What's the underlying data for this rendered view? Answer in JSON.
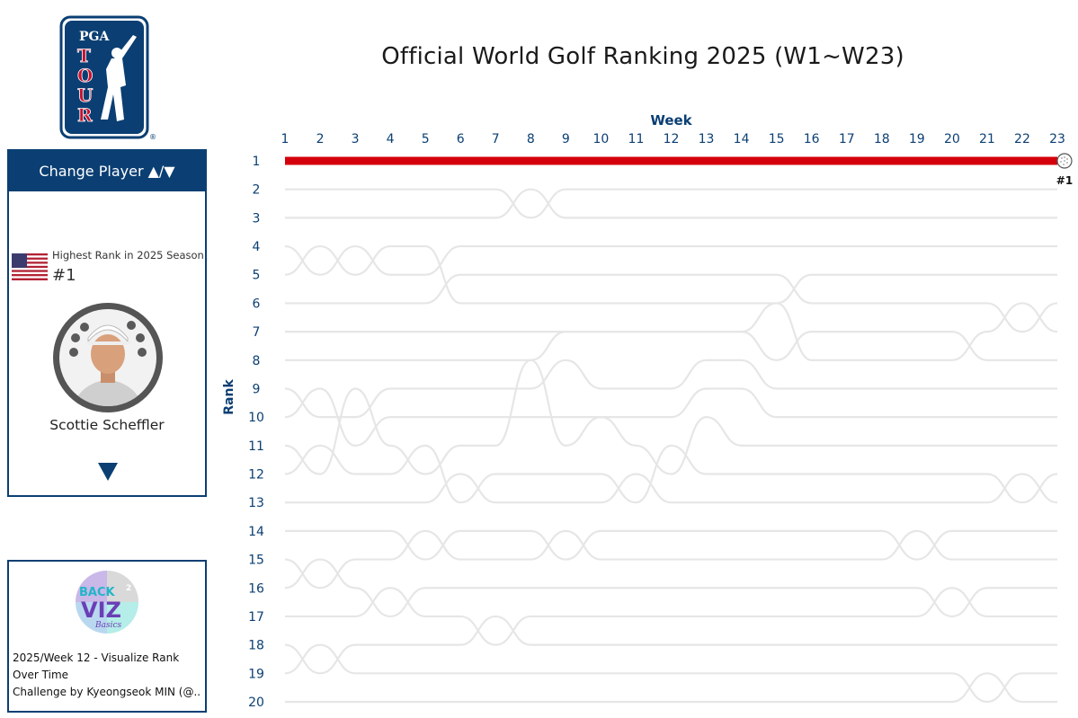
{
  "title": "Official World Golf Ranking 2025 (W1~W23)",
  "panel": {
    "change_player_label": "Change Player ▲/▼",
    "highest_rank_label": "Highest Rank in 2025 Season",
    "highest_rank_value": "#1",
    "player_name": "Scottie Scheffler",
    "flag_icon": "us-flag-icon",
    "next_icon": "triangle-down-icon"
  },
  "logo": {
    "text": "PGA TOUR"
  },
  "credit": {
    "logo_text": "BACK 2 VIZ Basics",
    "line1": "2025/Week 12 - Visualize Rank",
    "line2": "Over Time",
    "line3": "Challenge by Kyeongseok MIN (@.."
  },
  "colors": {
    "navy": "#0b3f73",
    "highlight": "#d4000c",
    "background_lines": "#e6e6e6"
  },
  "chart_data": {
    "type": "line",
    "xlabel": "Week",
    "ylabel": "Rank",
    "x": [
      1,
      2,
      3,
      4,
      5,
      6,
      7,
      8,
      9,
      10,
      11,
      12,
      13,
      14,
      15,
      16,
      17,
      18,
      19,
      20,
      21,
      22,
      23
    ],
    "xlim": [
      1,
      23
    ],
    "ylim": [
      1,
      20
    ],
    "y_reversed": true,
    "yticks": [
      1,
      2,
      3,
      4,
      5,
      6,
      7,
      8,
      9,
      10,
      11,
      12,
      13,
      14,
      15,
      16,
      17,
      18,
      19,
      20
    ],
    "highlight": {
      "name": "Scottie Scheffler",
      "values": [
        1,
        1,
        1,
        1,
        1,
        1,
        1,
        1,
        1,
        1,
        1,
        1,
        1,
        1,
        1,
        1,
        1,
        1,
        1,
        1,
        1,
        1,
        1
      ],
      "end_label": "#1"
    },
    "background_series": [
      {
        "values": [
          2,
          2,
          2,
          2,
          2,
          2,
          2,
          3,
          2,
          2,
          2,
          2,
          2,
          2,
          2,
          2,
          2,
          2,
          2,
          2,
          2,
          2,
          2
        ]
      },
      {
        "values": [
          3,
          3,
          3,
          3,
          3,
          3,
          3,
          2,
          3,
          3,
          3,
          3,
          3,
          3,
          3,
          3,
          3,
          3,
          3,
          3,
          3,
          3,
          3
        ]
      },
      {
        "values": [
          4,
          5,
          4,
          5,
          5,
          4,
          4,
          4,
          4,
          4,
          4,
          4,
          4,
          4,
          4,
          4,
          4,
          4,
          4,
          4,
          4,
          4,
          4
        ]
      },
      {
        "values": [
          5,
          4,
          5,
          4,
          4,
          6,
          6,
          6,
          6,
          6,
          6,
          6,
          6,
          6,
          6,
          5,
          5,
          5,
          5,
          5,
          5,
          5,
          5
        ]
      },
      {
        "values": [
          6,
          6,
          6,
          6,
          6,
          5,
          5,
          5,
          5,
          5,
          5,
          5,
          5,
          5,
          5,
          6,
          6,
          6,
          6,
          6,
          6,
          7,
          6
        ]
      },
      {
        "values": [
          7,
          7,
          7,
          7,
          7,
          7,
          7,
          7,
          7,
          7,
          7,
          7,
          7,
          7,
          6,
          8,
          8,
          8,
          8,
          8,
          7,
          6,
          7
        ]
      },
      {
        "values": [
          8,
          8,
          8,
          8,
          8,
          8,
          8,
          8,
          7,
          7,
          7,
          7,
          7,
          7,
          8,
          7,
          7,
          7,
          7,
          7,
          8,
          8,
          8
        ]
      },
      {
        "values": [
          9,
          10,
          10,
          9,
          9,
          9,
          9,
          9,
          8,
          9,
          9,
          9,
          8,
          8,
          9,
          9,
          9,
          9,
          9,
          9,
          9,
          9,
          9
        ]
      },
      {
        "values": [
          10,
          9,
          11,
          10,
          10,
          10,
          10,
          10,
          10,
          10,
          10,
          10,
          9,
          9,
          10,
          10,
          10,
          10,
          10,
          10,
          10,
          10,
          10
        ]
      },
      {
        "values": [
          11,
          12,
          9,
          11,
          12,
          11,
          11,
          8,
          11,
          10,
          11,
          12,
          10,
          11,
          11,
          11,
          11,
          11,
          11,
          11,
          11,
          11,
          11
        ]
      },
      {
        "values": [
          12,
          11,
          12,
          12,
          11,
          13,
          12,
          12,
          12,
          12,
          13,
          11,
          12,
          12,
          12,
          12,
          12,
          12,
          12,
          12,
          12,
          13,
          12
        ]
      },
      {
        "values": [
          13,
          13,
          13,
          13,
          13,
          12,
          13,
          13,
          13,
          13,
          12,
          13,
          13,
          13,
          13,
          13,
          13,
          13,
          13,
          13,
          13,
          12,
          13
        ]
      },
      {
        "values": [
          14,
          14,
          14,
          14,
          15,
          14,
          14,
          14,
          15,
          14,
          14,
          14,
          14,
          14,
          14,
          14,
          14,
          14,
          15,
          14,
          14,
          14,
          14
        ]
      },
      {
        "values": [
          15,
          16,
          15,
          15,
          14,
          15,
          15,
          15,
          14,
          15,
          15,
          15,
          15,
          15,
          15,
          15,
          15,
          15,
          14,
          15,
          15,
          15,
          15
        ]
      },
      {
        "values": [
          16,
          15,
          16,
          17,
          16,
          16,
          16,
          16,
          16,
          16,
          16,
          16,
          16,
          16,
          16,
          16,
          16,
          16,
          16,
          17,
          16,
          16,
          16
        ]
      },
      {
        "values": [
          17,
          17,
          17,
          16,
          17,
          17,
          18,
          17,
          17,
          17,
          17,
          17,
          17,
          17,
          17,
          17,
          17,
          17,
          17,
          16,
          17,
          17,
          17
        ]
      },
      {
        "values": [
          18,
          19,
          18,
          18,
          18,
          18,
          17,
          18,
          18,
          18,
          18,
          18,
          18,
          18,
          18,
          18,
          18,
          18,
          18,
          18,
          18,
          18,
          18
        ]
      },
      {
        "values": [
          19,
          18,
          19,
          19,
          19,
          19,
          19,
          19,
          19,
          19,
          19,
          19,
          19,
          19,
          19,
          19,
          19,
          19,
          19,
          19,
          20,
          19,
          19
        ]
      },
      {
        "values": [
          20,
          20,
          20,
          20,
          20,
          20,
          20,
          20,
          20,
          20,
          20,
          20,
          20,
          20,
          20,
          20,
          20,
          20,
          20,
          20,
          19,
          20,
          20
        ]
      }
    ]
  }
}
